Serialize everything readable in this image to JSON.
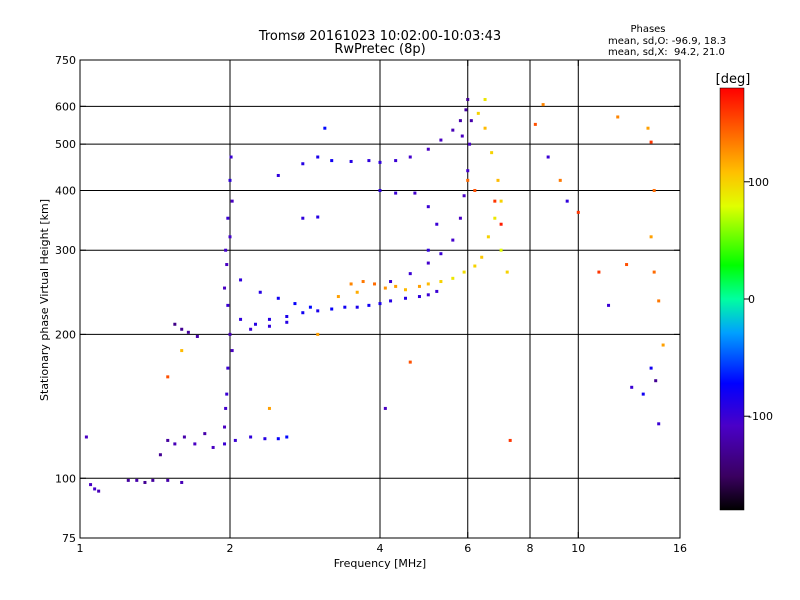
{
  "chart_data": {
    "type": "scatter",
    "title": "Tromsø 20161023 10:02:00-10:03:43",
    "subtitle": "RwPretec (8p)",
    "info_title": "Phases",
    "info_line1": "mean, sd,O: -96.9, 18.3",
    "info_line2": "mean, sd,X:  94.2, 21.0",
    "xlabel": "Frequency [MHz]",
    "ylabel": "Stationary phase Virtual Height [km]",
    "x_scale": "log",
    "y_scale": "log",
    "xlim": [
      1,
      16
    ],
    "ylim": [
      75,
      750
    ],
    "x_ticks": [
      1,
      2,
      4,
      6,
      8,
      10,
      16
    ],
    "x_tick_labels": [
      "1",
      "2",
      "4",
      "6",
      "8",
      "10",
      "16"
    ],
    "x_grid": [
      2,
      4,
      6,
      8,
      10
    ],
    "y_ticks": [
      75,
      100,
      200,
      300,
      400,
      500,
      600,
      750
    ],
    "y_tick_labels": [
      "75",
      "100",
      "200",
      "300",
      "400",
      "500",
      "600",
      "750"
    ],
    "y_grid": [
      100,
      200,
      300,
      400,
      500,
      600
    ],
    "grid": true,
    "colorbar": {
      "label": "[deg]",
      "range": [
        -180,
        180
      ],
      "ticks": [
        100,
        0,
        -100
      ],
      "tick_labels": [
        "100",
        "0",
        "-100"
      ]
    },
    "series": [
      {
        "points": [
          [
            1.05,
            97,
            -110
          ],
          [
            1.07,
            95,
            -105
          ],
          [
            1.09,
            94,
            -115
          ],
          [
            1.03,
            122,
            -110
          ],
          [
            1.25,
            99,
            -125
          ],
          [
            1.3,
            99,
            -120
          ],
          [
            1.35,
            98,
            -130
          ],
          [
            1.4,
            99,
            -125
          ],
          [
            1.5,
            99,
            -120
          ],
          [
            1.6,
            98,
            -115
          ],
          [
            1.45,
            112,
            -130
          ],
          [
            1.5,
            120,
            -125
          ],
          [
            1.55,
            118,
            -115
          ],
          [
            1.62,
            122,
            -120
          ],
          [
            1.7,
            118,
            -110
          ],
          [
            1.78,
            124,
            -120
          ],
          [
            1.85,
            116,
            -110
          ],
          [
            1.95,
            118,
            -100
          ],
          [
            2.05,
            120,
            -100
          ],
          [
            2.2,
            122,
            -95
          ],
          [
            2.35,
            121,
            -90
          ],
          [
            2.5,
            121,
            -75
          ],
          [
            2.6,
            122,
            -70
          ],
          [
            1.55,
            210,
            -135
          ],
          [
            1.6,
            205,
            -130
          ],
          [
            1.65,
            202,
            -125
          ],
          [
            1.72,
            198,
            -120
          ],
          [
            1.95,
            250,
            -110
          ],
          [
            1.96,
            300,
            -105
          ],
          [
            1.98,
            350,
            -100
          ],
          [
            2.0,
            420,
            -95
          ],
          [
            2.01,
            470,
            -100
          ],
          [
            2.02,
            380,
            -110
          ],
          [
            2.0,
            320,
            -105
          ],
          [
            1.97,
            280,
            -110
          ],
          [
            1.98,
            230,
            -100
          ],
          [
            2.0,
            200,
            -115
          ],
          [
            2.02,
            185,
            -110
          ],
          [
            1.98,
            170,
            -100
          ],
          [
            1.97,
            150,
            -100
          ],
          [
            1.96,
            140,
            -105
          ],
          [
            1.95,
            128,
            -110
          ],
          [
            2.1,
            215,
            -95
          ],
          [
            2.25,
            210,
            -90
          ],
          [
            2.4,
            215,
            -90
          ],
          [
            2.6,
            218,
            -85
          ],
          [
            2.8,
            222,
            -80
          ],
          [
            3.0,
            224,
            -85
          ],
          [
            3.2,
            226,
            -75
          ],
          [
            3.4,
            228,
            -80
          ],
          [
            3.6,
            228,
            -85
          ],
          [
            3.8,
            230,
            -80
          ],
          [
            4.0,
            232,
            -85
          ],
          [
            4.2,
            235,
            -90
          ],
          [
            4.5,
            238,
            -90
          ],
          [
            4.8,
            240,
            -95
          ],
          [
            5.0,
            242,
            -100
          ],
          [
            5.2,
            246,
            -100
          ],
          [
            2.1,
            260,
            -95
          ],
          [
            2.3,
            245,
            -90
          ],
          [
            2.5,
            238,
            -80
          ],
          [
            2.7,
            232,
            -75
          ],
          [
            2.9,
            228,
            -70
          ],
          [
            2.2,
            205,
            -100
          ],
          [
            2.4,
            208,
            -95
          ],
          [
            2.6,
            212,
            -90
          ],
          [
            4.2,
            258,
            -100
          ],
          [
            4.6,
            268,
            -100
          ],
          [
            5.0,
            282,
            -105
          ],
          [
            5.3,
            295,
            -100
          ],
          [
            5.6,
            315,
            -105
          ],
          [
            5.8,
            350,
            -110
          ],
          [
            5.9,
            390,
            -110
          ],
          [
            6.0,
            440,
            -105
          ],
          [
            6.05,
            500,
            -110
          ],
          [
            6.1,
            560,
            -120
          ],
          [
            6.0,
            620,
            -130
          ],
          [
            5.95,
            590,
            -125
          ],
          [
            5.85,
            520,
            -110
          ],
          [
            2.5,
            430,
            -95
          ],
          [
            2.8,
            455,
            -90
          ],
          [
            3.0,
            470,
            -85
          ],
          [
            3.2,
            462,
            -80
          ],
          [
            3.5,
            460,
            -90
          ],
          [
            3.8,
            462,
            -95
          ],
          [
            4.0,
            458,
            -95
          ],
          [
            4.3,
            462,
            -100
          ],
          [
            4.6,
            470,
            -105
          ],
          [
            5.0,
            488,
            -110
          ],
          [
            5.3,
            510,
            -110
          ],
          [
            5.6,
            535,
            -115
          ],
          [
            5.8,
            560,
            -120
          ],
          [
            2.8,
            350,
            -95
          ],
          [
            3.0,
            352,
            -90
          ],
          [
            4.0,
            400,
            -95
          ],
          [
            4.3,
            395,
            -100
          ],
          [
            4.7,
            395,
            -105
          ],
          [
            5.0,
            370,
            -100
          ],
          [
            5.2,
            340,
            -100
          ],
          [
            5.0,
            300,
            -95
          ],
          [
            3.5,
            255,
            130
          ],
          [
            3.7,
            258,
            135
          ],
          [
            3.9,
            255,
            140
          ],
          [
            4.1,
            250,
            125
          ],
          [
            4.3,
            252,
            120
          ],
          [
            4.5,
            248,
            110
          ],
          [
            4.8,
            252,
            120
          ],
          [
            5.0,
            255,
            110
          ],
          [
            5.3,
            258,
            100
          ],
          [
            5.6,
            262,
            90
          ],
          [
            5.9,
            270,
            95
          ],
          [
            6.2,
            278,
            100
          ],
          [
            6.4,
            290,
            105
          ],
          [
            6.6,
            320,
            100
          ],
          [
            6.8,
            350,
            90
          ],
          [
            7.0,
            380,
            100
          ],
          [
            6.9,
            420,
            110
          ],
          [
            6.7,
            480,
            100
          ],
          [
            6.5,
            540,
            110
          ],
          [
            6.3,
            580,
            100
          ],
          [
            6.5,
            620,
            90
          ],
          [
            3.3,
            240,
            120
          ],
          [
            3.6,
            245,
            115
          ],
          [
            7.0,
            300,
            80
          ],
          [
            7.2,
            270,
            100
          ],
          [
            6.0,
            420,
            140
          ],
          [
            6.2,
            400,
            150
          ],
          [
            6.8,
            380,
            160
          ],
          [
            7.0,
            340,
            170
          ],
          [
            8.2,
            550,
            150
          ],
          [
            8.5,
            605,
            130
          ],
          [
            9.2,
            420,
            135
          ],
          [
            9.5,
            380,
            -95
          ],
          [
            8.7,
            470,
            -100
          ],
          [
            10.0,
            360,
            160
          ],
          [
            11.0,
            270,
            160
          ],
          [
            12.0,
            570,
            130
          ],
          [
            12.5,
            280,
            150
          ],
          [
            13.8,
            540,
            120
          ],
          [
            14.0,
            505,
            160
          ],
          [
            14.2,
            400,
            140
          ],
          [
            14.0,
            320,
            120
          ],
          [
            14.2,
            270,
            140
          ],
          [
            14.5,
            235,
            135
          ],
          [
            14.8,
            190,
            120
          ],
          [
            14.0,
            170,
            -80
          ],
          [
            14.3,
            160,
            -130
          ],
          [
            13.5,
            150,
            -80
          ],
          [
            12.8,
            155,
            -100
          ],
          [
            14.5,
            130,
            -100
          ],
          [
            11.5,
            230,
            -100
          ],
          [
            4.1,
            140,
            -110
          ],
          [
            1.5,
            163,
            150
          ],
          [
            1.6,
            185,
            110
          ],
          [
            2.4,
            140,
            120
          ],
          [
            3.0,
            200,
            120
          ],
          [
            4.6,
            175,
            150
          ],
          [
            7.3,
            120,
            160
          ],
          [
            3.1,
            540,
            -70
          ]
        ]
      }
    ]
  }
}
